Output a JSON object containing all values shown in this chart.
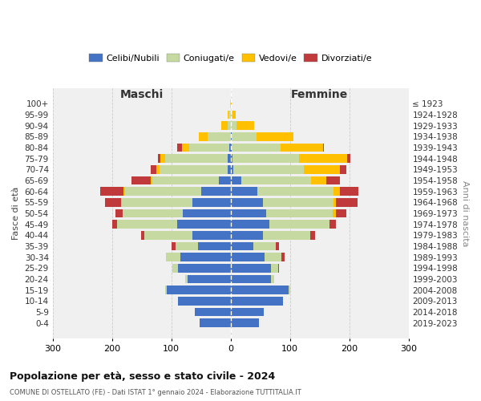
{
  "age_groups": [
    "100+",
    "95-99",
    "90-94",
    "85-89",
    "80-84",
    "75-79",
    "70-74",
    "65-69",
    "60-64",
    "55-59",
    "50-54",
    "45-49",
    "40-44",
    "35-39",
    "30-34",
    "25-29",
    "20-24",
    "15-19",
    "10-14",
    "5-9",
    "0-4"
  ],
  "birth_years": [
    "≤ 1923",
    "1924-1928",
    "1929-1933",
    "1934-1938",
    "1939-1943",
    "1944-1948",
    "1949-1953",
    "1954-1958",
    "1959-1963",
    "1964-1968",
    "1969-1973",
    "1974-1978",
    "1979-1983",
    "1984-1988",
    "1989-1993",
    "1994-1998",
    "1999-2003",
    "2004-2008",
    "2009-2013",
    "2014-2018",
    "2019-2023"
  ],
  "male": {
    "celibi": [
      0,
      0,
      0,
      0,
      2,
      5,
      5,
      20,
      50,
      65,
      80,
      90,
      65,
      55,
      85,
      88,
      72,
      108,
      88,
      60,
      52
    ],
    "coniugati": [
      1,
      3,
      5,
      38,
      68,
      105,
      115,
      112,
      128,
      118,
      102,
      102,
      80,
      38,
      24,
      10,
      5,
      2,
      0,
      0,
      0
    ],
    "vedovi": [
      0,
      2,
      10,
      15,
      12,
      8,
      5,
      3,
      2,
      1,
      0,
      0,
      0,
      0,
      0,
      0,
      0,
      0,
      0,
      0,
      0
    ],
    "divorziati": [
      0,
      0,
      0,
      0,
      8,
      5,
      10,
      32,
      40,
      28,
      12,
      8,
      6,
      6,
      0,
      0,
      0,
      0,
      0,
      0,
      0
    ]
  },
  "female": {
    "nubili": [
      0,
      0,
      0,
      2,
      2,
      3,
      5,
      18,
      45,
      55,
      60,
      65,
      55,
      38,
      58,
      68,
      68,
      98,
      88,
      56,
      48
    ],
    "coniugate": [
      1,
      3,
      10,
      42,
      82,
      112,
      118,
      118,
      128,
      118,
      112,
      102,
      80,
      38,
      28,
      12,
      5,
      2,
      0,
      0,
      0
    ],
    "vedove": [
      1,
      5,
      30,
      62,
      72,
      82,
      62,
      26,
      12,
      5,
      5,
      0,
      0,
      0,
      0,
      0,
      0,
      0,
      0,
      0,
      0
    ],
    "divorziate": [
      0,
      0,
      0,
      0,
      2,
      5,
      10,
      22,
      30,
      36,
      18,
      10,
      8,
      5,
      5,
      2,
      0,
      0,
      0,
      0,
      0
    ]
  },
  "colors": {
    "celibi": "#4472c4",
    "coniugati": "#c5d9a0",
    "vedovi": "#ffc000",
    "divorziati": "#c0393b"
  },
  "title": "Popolazione per età, sesso e stato civile - 2024",
  "subtitle": "COMUNE DI OSTELLATO (FE) - Dati ISTAT 1° gennaio 2024 - Elaborazione TUTTITALIA.IT",
  "xlabel_left": "Maschi",
  "xlabel_right": "Femmine",
  "ylabel_left": "Fasce di età",
  "ylabel_right": "Anni di nascita",
  "xlim": 300,
  "legend_labels": [
    "Celibi/Nubili",
    "Coniugati/e",
    "Vedovi/e",
    "Divorziati/e"
  ],
  "bg_color": "#ffffff",
  "plot_bg": "#f0f0f0",
  "grid_color": "#cccccc"
}
